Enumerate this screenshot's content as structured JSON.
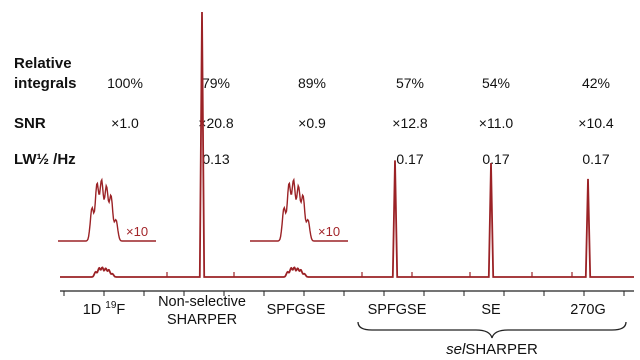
{
  "chart_data": {
    "type": "line",
    "title": "",
    "colors": {
      "spectrum": "#9b2226",
      "text": "#111111",
      "scale_label": "#a3262b"
    },
    "rows": [
      {
        "label_line1": "Relative",
        "label_line2": "integrals",
        "values": [
          "100%",
          "79%",
          "89%",
          "57%",
          "54%",
          "42%"
        ]
      },
      {
        "label_line1": "SNR",
        "label_line2": "",
        "values": [
          "×1.0",
          "×20.8",
          "×0.9",
          "×12.8",
          "×11.0",
          "×10.4"
        ]
      },
      {
        "label_line1": "LW½ /Hz",
        "label_line2": "",
        "values": [
          "",
          "0.13",
          "",
          "0.17",
          "0.17",
          "0.17"
        ]
      }
    ],
    "series": [
      {
        "method": "1D ¹⁹F",
        "category_line1": "1D ",
        "category_sup": "19",
        "category_tail": "F",
        "category_line2": "",
        "relative_integral": 100,
        "snr_factor": 1.0,
        "linewidth_hz": null,
        "peak_shape": "multiplet",
        "peak_height": 0.04,
        "inset_scale": "×10"
      },
      {
        "method": "Non-selective SHARPER",
        "category_line1": "Non-selective",
        "category_sup": "",
        "category_tail": "",
        "category_line2": "SHARPER",
        "relative_integral": 79,
        "snr_factor": 20.8,
        "linewidth_hz": 0.13,
        "peak_shape": "singlet",
        "peak_height": 1.0,
        "inset_scale": ""
      },
      {
        "method": "SPFGSE",
        "category_line1": "SPFGSE",
        "category_sup": "",
        "category_tail": "",
        "category_line2": "",
        "relative_integral": 89,
        "snr_factor": 0.9,
        "linewidth_hz": null,
        "peak_shape": "multiplet",
        "peak_height": 0.04,
        "inset_scale": "×10"
      },
      {
        "method": "selSHARPER SPFGSE",
        "category_line1": "SPFGSE",
        "category_sup": "",
        "category_tail": "",
        "category_line2": "",
        "relative_integral": 57,
        "snr_factor": 12.8,
        "linewidth_hz": 0.17,
        "peak_shape": "singlet",
        "peak_height": 0.44,
        "inset_scale": ""
      },
      {
        "method": "selSHARPER SE",
        "category_line1": "SE",
        "category_sup": "",
        "category_tail": "",
        "category_line2": "",
        "relative_integral": 54,
        "snr_factor": 11.0,
        "linewidth_hz": 0.17,
        "peak_shape": "singlet",
        "peak_height": 0.43,
        "inset_scale": ""
      },
      {
        "method": "selSHARPER 270G",
        "category_line1": "270G",
        "category_sup": "",
        "category_tail": "",
        "category_line2": "",
        "relative_integral": 42,
        "snr_factor": 10.4,
        "linewidth_hz": 0.17,
        "peak_shape": "singlet",
        "peak_height": 0.37,
        "inset_scale": ""
      }
    ],
    "group_label": {
      "italic": "sel",
      "rest": "SHARPER"
    }
  }
}
